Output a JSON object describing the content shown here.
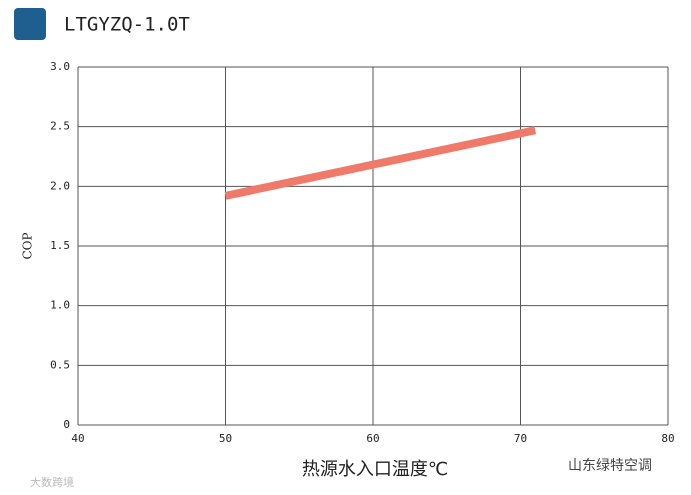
{
  "chart_data": {
    "type": "line",
    "title": "LTGYZQ-1.0T",
    "x_label": "热源水入口温度℃",
    "y_label": "COP",
    "x": [
      50,
      71
    ],
    "series": [
      {
        "name": "COP",
        "color": "#f07a6a",
        "values": [
          1.92,
          2.47
        ]
      }
    ],
    "xlim": [
      40,
      80
    ],
    "xticks": [
      40,
      50,
      60,
      70,
      80
    ],
    "ylim": [
      0,
      3
    ],
    "yticks": [
      0,
      {
        "value": 0.5,
        "label": "0.5"
      },
      {
        "value": 1,
        "label": "1.0"
      },
      {
        "value": 1.5,
        "label": "1.5"
      },
      {
        "value": 2,
        "label": "2.0"
      },
      {
        "value": 2.5,
        "label": "2.5"
      },
      {
        "value": 3,
        "label": "3.0"
      }
    ],
    "grid": true
  },
  "watermarks": [
    "大数跨境",
    "山东绿特空调"
  ]
}
